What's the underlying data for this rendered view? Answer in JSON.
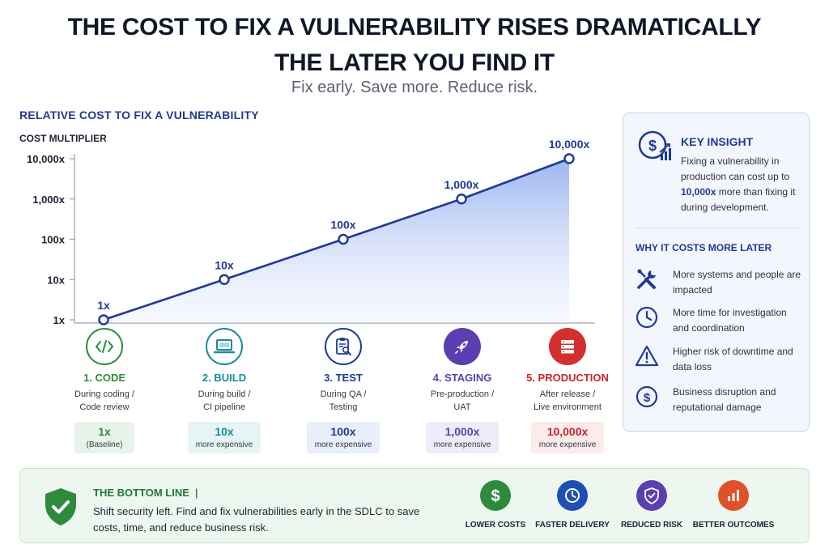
{
  "header": {
    "title_line1": "THE COST TO FIX A VULNERABILITY RISES DRAMATICALLY",
    "title_line2": "THE LATER YOU FIND IT",
    "subtitle": "Fix early. Save more. Reduce risk."
  },
  "chart_data": {
    "type": "line",
    "title": "RELATIVE COST TO FIX A VULNERABILITY",
    "ylabel": "COST MULTIPLIER",
    "xlabel": "",
    "y_scale": "log",
    "ylim": [
      1,
      10000
    ],
    "y_ticks": [
      1,
      10,
      100,
      1000,
      10000
    ],
    "y_tick_labels": [
      "1x",
      "10x",
      "100x",
      "1,000x",
      "10,000x"
    ],
    "categories": [
      "1. CODE",
      "2. BUILD",
      "3. TEST",
      "4. STAGING",
      "5. PRODUCTION"
    ],
    "values": [
      1,
      10,
      100,
      1000,
      10000
    ],
    "point_labels": [
      "1x",
      "10x",
      "100x",
      "1,000x",
      "10,000x"
    ],
    "grid": false,
    "fill": "area-gradient",
    "line_color": "#1f3a93"
  },
  "stages": [
    {
      "name": "1. CODE",
      "desc": "During coding /\nCode review",
      "mult": "1x",
      "note": "(Baseline)",
      "color": "#2e8b3e",
      "bg": "#e8f4ea",
      "icon": "code-icon"
    },
    {
      "name": "2. BUILD",
      "desc": "During build /\nCI pipeline",
      "mult": "10x",
      "note": "more expensive",
      "color": "#1a8a9e",
      "bg": "#e6f4f6",
      "icon": "laptop-icon"
    },
    {
      "name": "3. TEST",
      "desc": "During QA /\nTesting",
      "mult": "100x",
      "note": "more expensive",
      "color": "#1f3a93",
      "bg": "#e9eefb",
      "icon": "clipboard-search-icon"
    },
    {
      "name": "4. STAGING",
      "desc": "Pre-production /\nUAT",
      "mult": "1,000x",
      "note": "more expensive",
      "color": "#5b3fb0",
      "bg": "#efebf9",
      "icon": "rocket-icon"
    },
    {
      "name": "5. PRODUCTION",
      "desc": "After release /\nLive environment",
      "mult": "10,000x",
      "note": "more expensive",
      "color": "#c62828",
      "bg": "#fbebeb",
      "icon": "server-icon"
    }
  ],
  "key_insight": {
    "title": "KEY INSIGHT",
    "text_before": "Fixing a vulnerability in production can cost up to ",
    "highlight": "10,000x",
    "text_after": " more than fixing it during development.",
    "icon": "dollar-growth-icon"
  },
  "why": {
    "title": "WHY IT COSTS MORE LATER",
    "reasons": [
      {
        "icon": "tools-icon",
        "text": "More systems and people are impacted"
      },
      {
        "icon": "clock-icon",
        "text": "More time for investigation and coordination"
      },
      {
        "icon": "warning-icon",
        "text": "Higher risk of downtime and data loss"
      },
      {
        "icon": "dollar-icon",
        "text": "Business disruption and reputational damage"
      }
    ]
  },
  "bottom_line": {
    "title": "THE BOTTOM LINE",
    "separator": "|",
    "text": "Shift security left. Find and fix vulnerabilities early in the SDLC to save costs, time, and reduce business risk.",
    "icon": "shield-check-icon"
  },
  "outcomes": [
    {
      "label": "LOWER COSTS",
      "icon": "dollar-icon",
      "color": "#2e8b3e"
    },
    {
      "label": "FASTER DELIVERY",
      "icon": "clock-icon",
      "color": "#1f4fb5"
    },
    {
      "label": "REDUCED RISK",
      "icon": "shield-icon",
      "color": "#5b3fb0"
    },
    {
      "label": "BETTER OUTCOMES",
      "icon": "bar-chart-icon",
      "color": "#e0502a"
    }
  ]
}
